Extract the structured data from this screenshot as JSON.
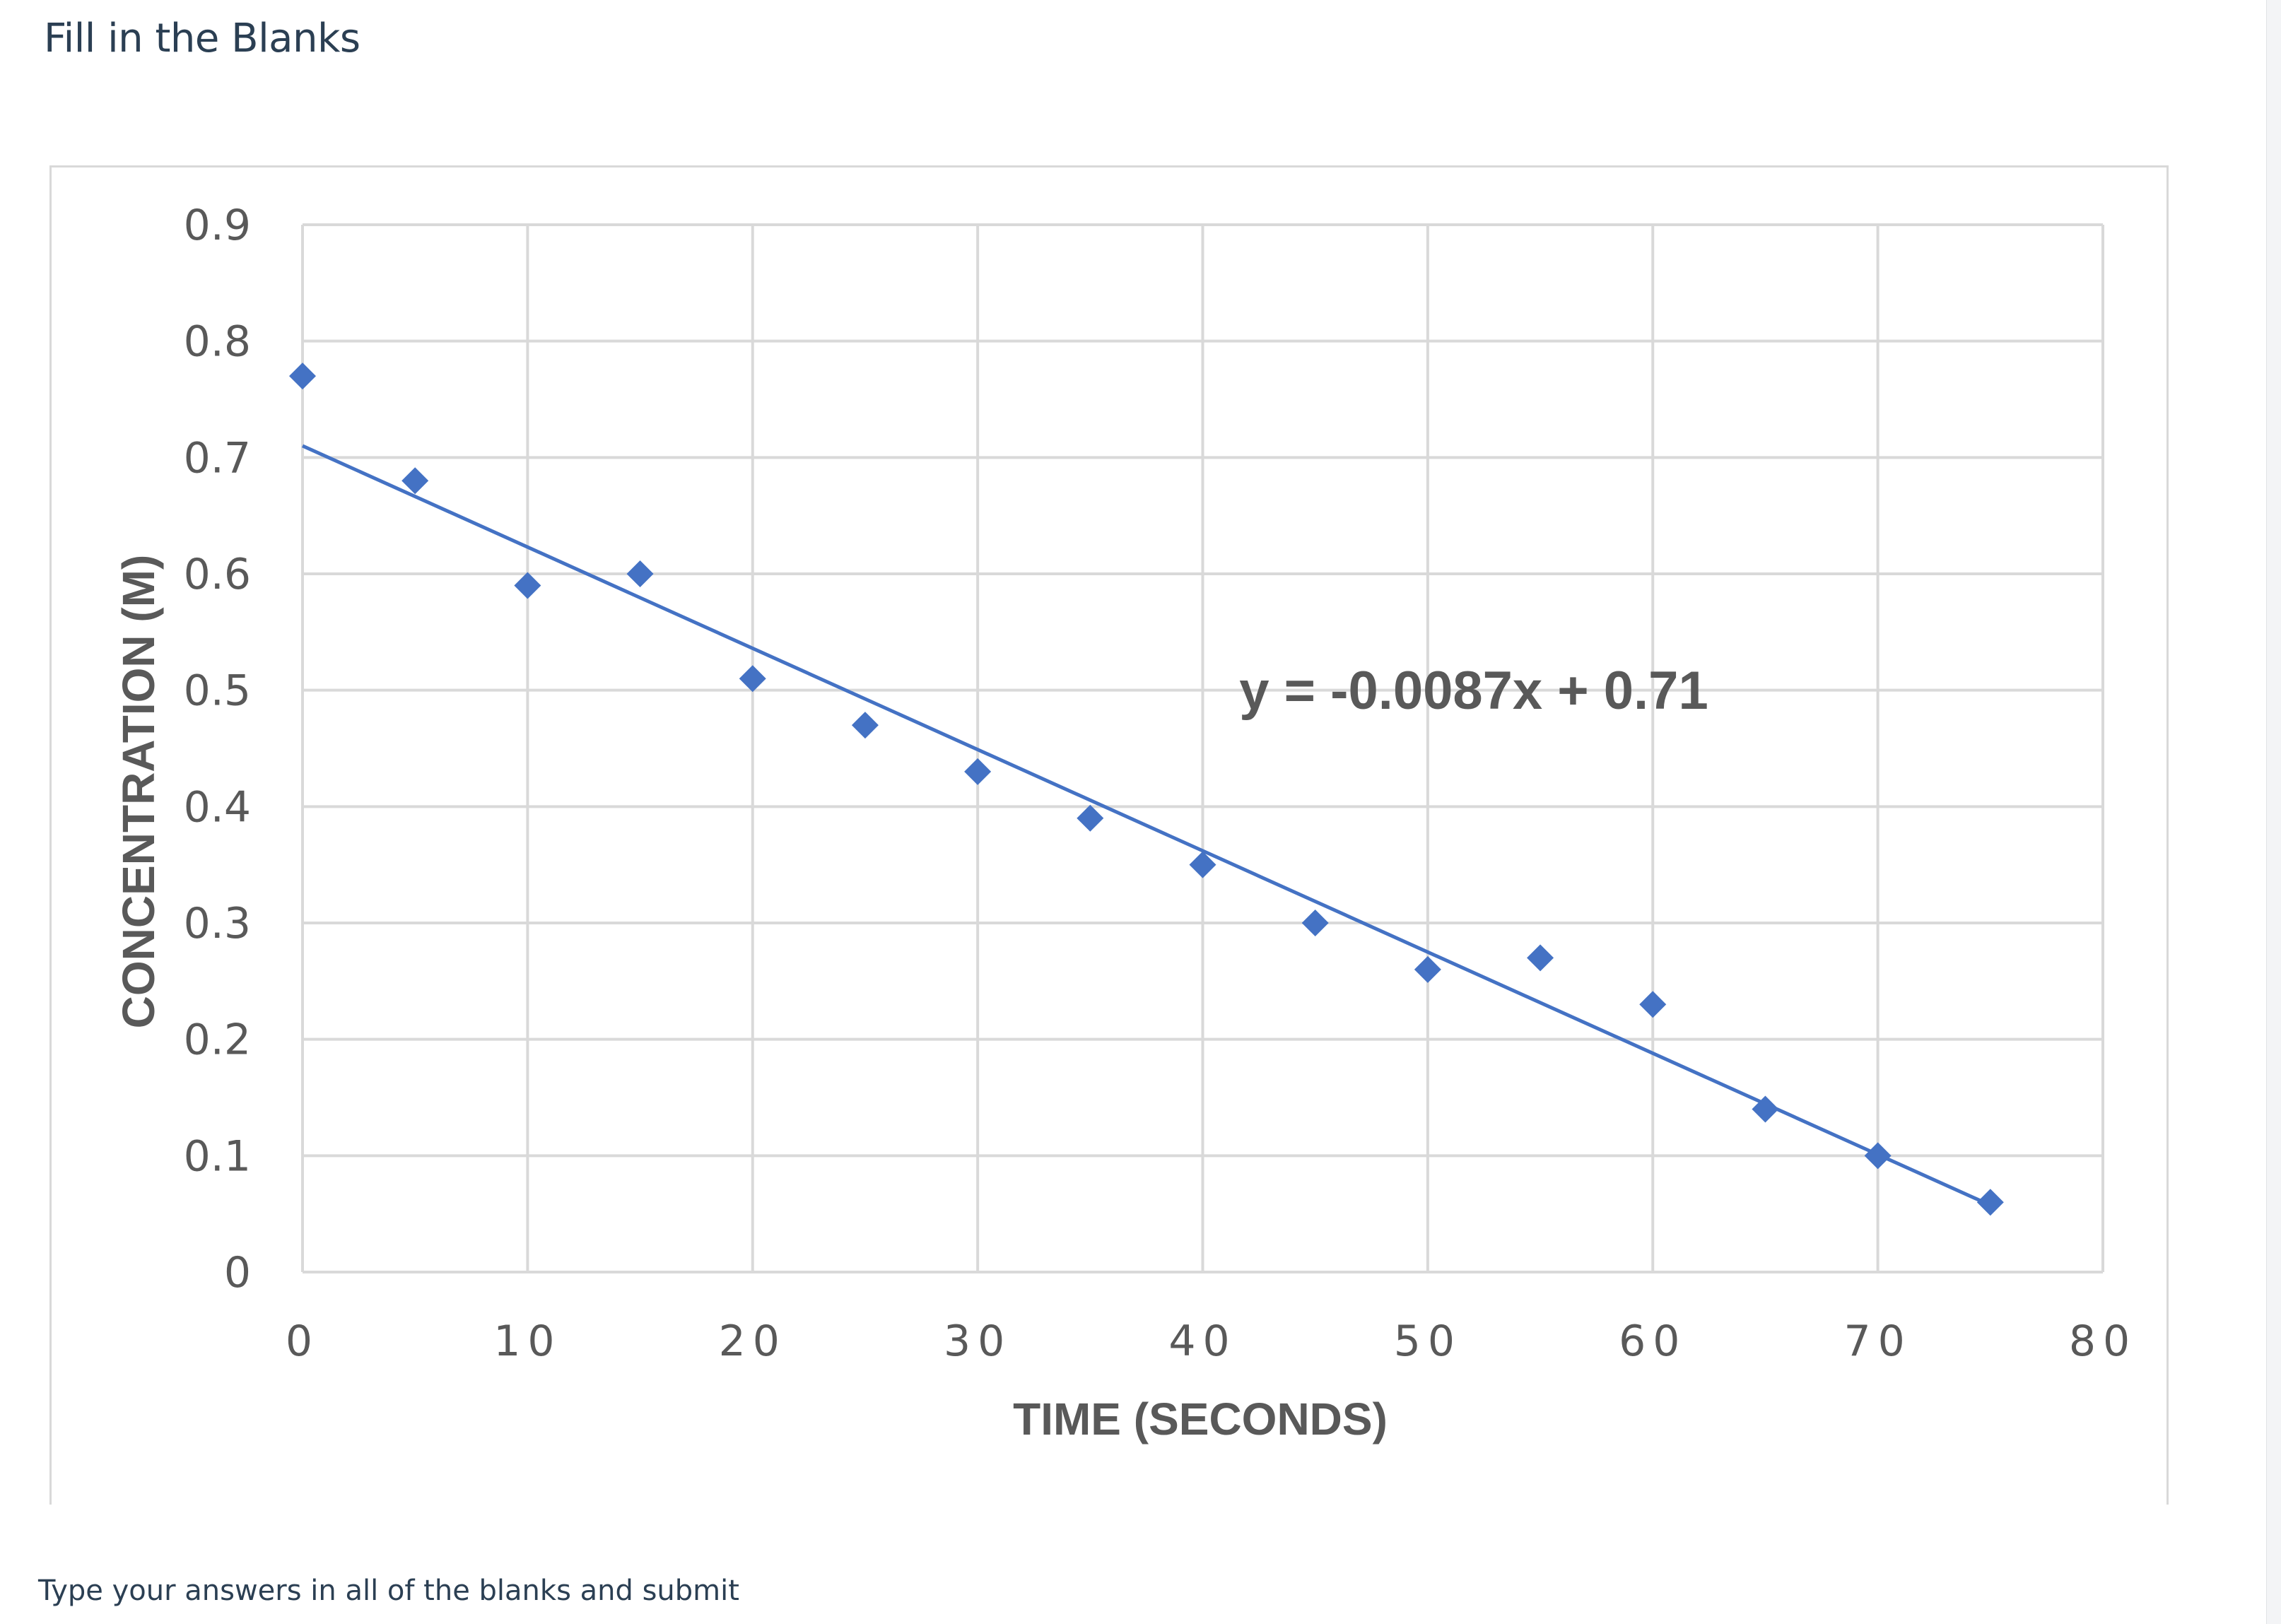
{
  "page": {
    "title": "Fill in the Blanks",
    "instructions": "Type your answers in all of the blanks and submit"
  },
  "colors": {
    "marker": "#4472C4",
    "trendline": "#4472C4",
    "grid": "#d9d9d9",
    "axis_text": "#595959",
    "page_text": "#2b3f53"
  },
  "chart_data": {
    "type": "scatter",
    "xlabel": "TIME (SECONDS)",
    "ylabel": "CONCENTRATION (M)",
    "xlim": [
      0,
      80
    ],
    "ylim": [
      0,
      0.9
    ],
    "x_ticks": [
      "0",
      "10",
      "20",
      "30",
      "40",
      "50",
      "60",
      "70",
      "80"
    ],
    "y_ticks": [
      "0",
      "0.1",
      "0.2",
      "0.3",
      "0.4",
      "0.5",
      "0.6",
      "0.7",
      "0.8",
      "0.9"
    ],
    "grid": true,
    "marker": "diamond",
    "series": [
      {
        "x": [
          0,
          5,
          10,
          15,
          20,
          25,
          30,
          35,
          40,
          45,
          50,
          55,
          60,
          65,
          70,
          75
        ],
        "y": [
          0.77,
          0.68,
          0.59,
          0.6,
          0.51,
          0.47,
          0.43,
          0.39,
          0.35,
          0.3,
          0.26,
          0.27,
          0.23,
          0.14,
          0.1,
          0.06
        ]
      }
    ],
    "trendline": {
      "slope": -0.0087,
      "intercept": 0.71,
      "x_range": [
        0,
        75
      ],
      "equation_label": "y = -0.0087x + 0.71"
    }
  }
}
